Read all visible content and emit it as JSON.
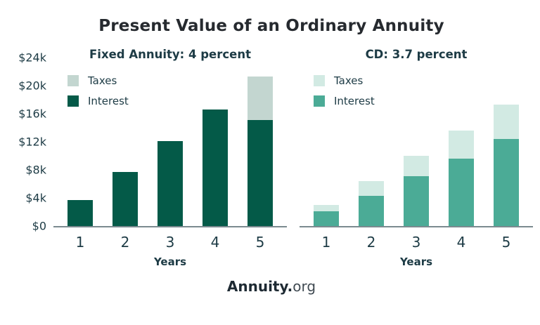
{
  "page": {
    "title": "Present Value of an Ordinary Annuity",
    "footer": {
      "brand_bold": "Annuity.",
      "brand_light": "org"
    }
  },
  "axis": {
    "y_tick_labels": [
      "$24k",
      "$20k",
      "$16k",
      "$12k",
      "$8k",
      "$4k",
      "$0"
    ],
    "x_label": "Years",
    "x_tick_labels": [
      "1",
      "2",
      "3",
      "4",
      "5"
    ]
  },
  "chart_data": [
    {
      "type": "bar",
      "stacked": true,
      "title": "Fixed Annuity: 4 percent",
      "categories": [
        "1",
        "2",
        "3",
        "4",
        "5"
      ],
      "series": [
        {
          "name": "Taxes",
          "color": "#C3D6D0",
          "values": [
            0,
            0,
            0,
            0,
            6.2
          ]
        },
        {
          "name": "Interest",
          "color": "#045A48",
          "values": [
            3.7,
            7.7,
            12.1,
            16.6,
            15.1
          ]
        }
      ],
      "xlabel": "Years",
      "ylim": [
        0,
        24
      ],
      "units": "thousands of dollars",
      "y_tick_labels": [
        "$24k",
        "$20k",
        "$16k",
        "$12k",
        "$8k",
        "$4k",
        "$0"
      ],
      "legend_position": "top-left",
      "grid": false
    },
    {
      "type": "bar",
      "stacked": true,
      "title": "CD: 3.7 percent",
      "categories": [
        "1",
        "2",
        "3",
        "4",
        "5"
      ],
      "series": [
        {
          "name": "Taxes",
          "color": "#D2EAE3",
          "values": [
            0.9,
            2.1,
            2.9,
            4.0,
            4.9
          ]
        },
        {
          "name": "Interest",
          "color": "#4BAB96",
          "values": [
            2.1,
            4.3,
            7.1,
            9.6,
            12.4
          ]
        }
      ],
      "xlabel": "Years",
      "ylim": [
        0,
        24
      ],
      "units": "thousands of dollars",
      "y_tick_labels": [],
      "legend_position": "top-left",
      "grid": false
    }
  ]
}
